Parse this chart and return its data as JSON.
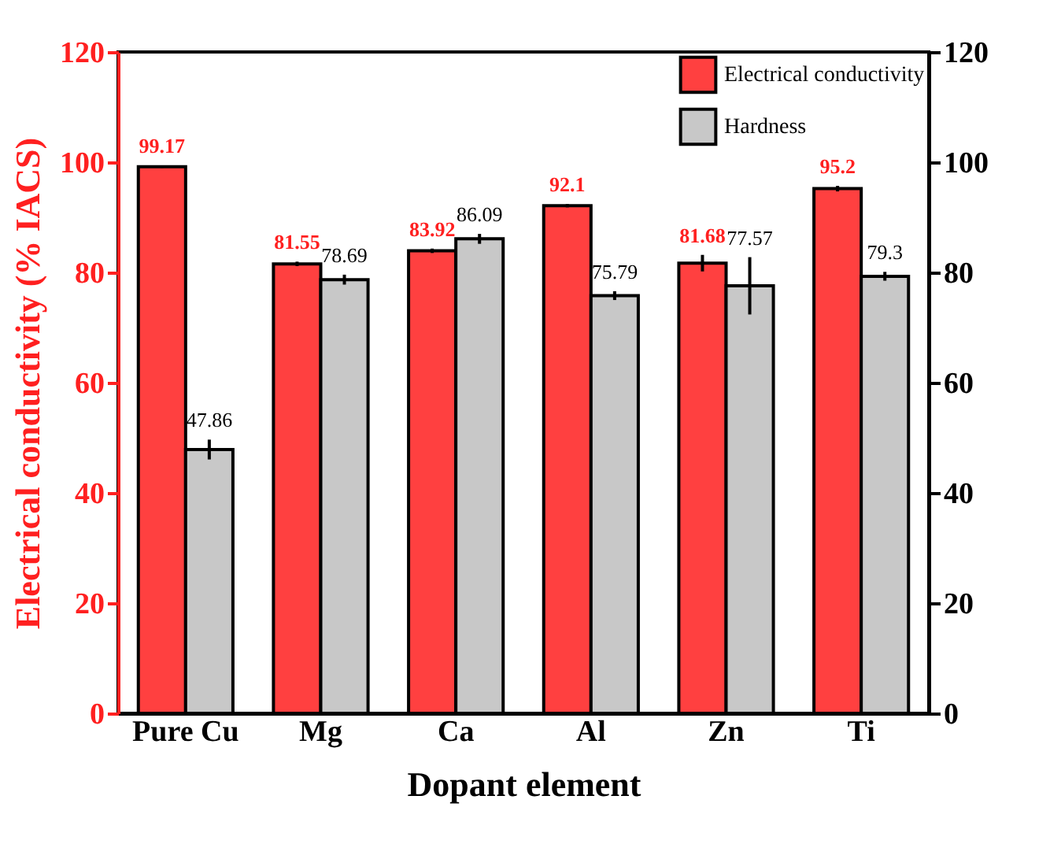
{
  "chart_data": {
    "type": "bar",
    "xlabel": "Dopant element",
    "ylabel": "Electrical conductivity (% IACS)",
    "categories": [
      "Pure Cu",
      "Mg",
      "Ca",
      "Al",
      "Zn",
      "Ti"
    ],
    "series": [
      {
        "name": "Electrical conductivity",
        "color": "#ff4040",
        "values": [
          99.17,
          81.55,
          83.92,
          92.1,
          81.68,
          95.2
        ],
        "errors": [
          0.2,
          0.4,
          0.4,
          0.3,
          1.5,
          0.5
        ]
      },
      {
        "name": "Hardness",
        "color": "#c8c8c8",
        "axis": "y2",
        "values": [
          47.86,
          78.69,
          86.09,
          75.79,
          77.57,
          79.3
        ],
        "errors": [
          1.8,
          0.9,
          0.9,
          0.8,
          5.2,
          0.8
        ]
      }
    ],
    "ylim": [
      0,
      120
    ],
    "yticks": [
      0,
      20,
      40,
      60,
      80,
      100,
      120
    ],
    "y2lim": [
      0,
      120
    ],
    "y2ticks": [
      0,
      20,
      40,
      60,
      80,
      100,
      120
    ],
    "data_labels": true,
    "legend": "top right"
  }
}
